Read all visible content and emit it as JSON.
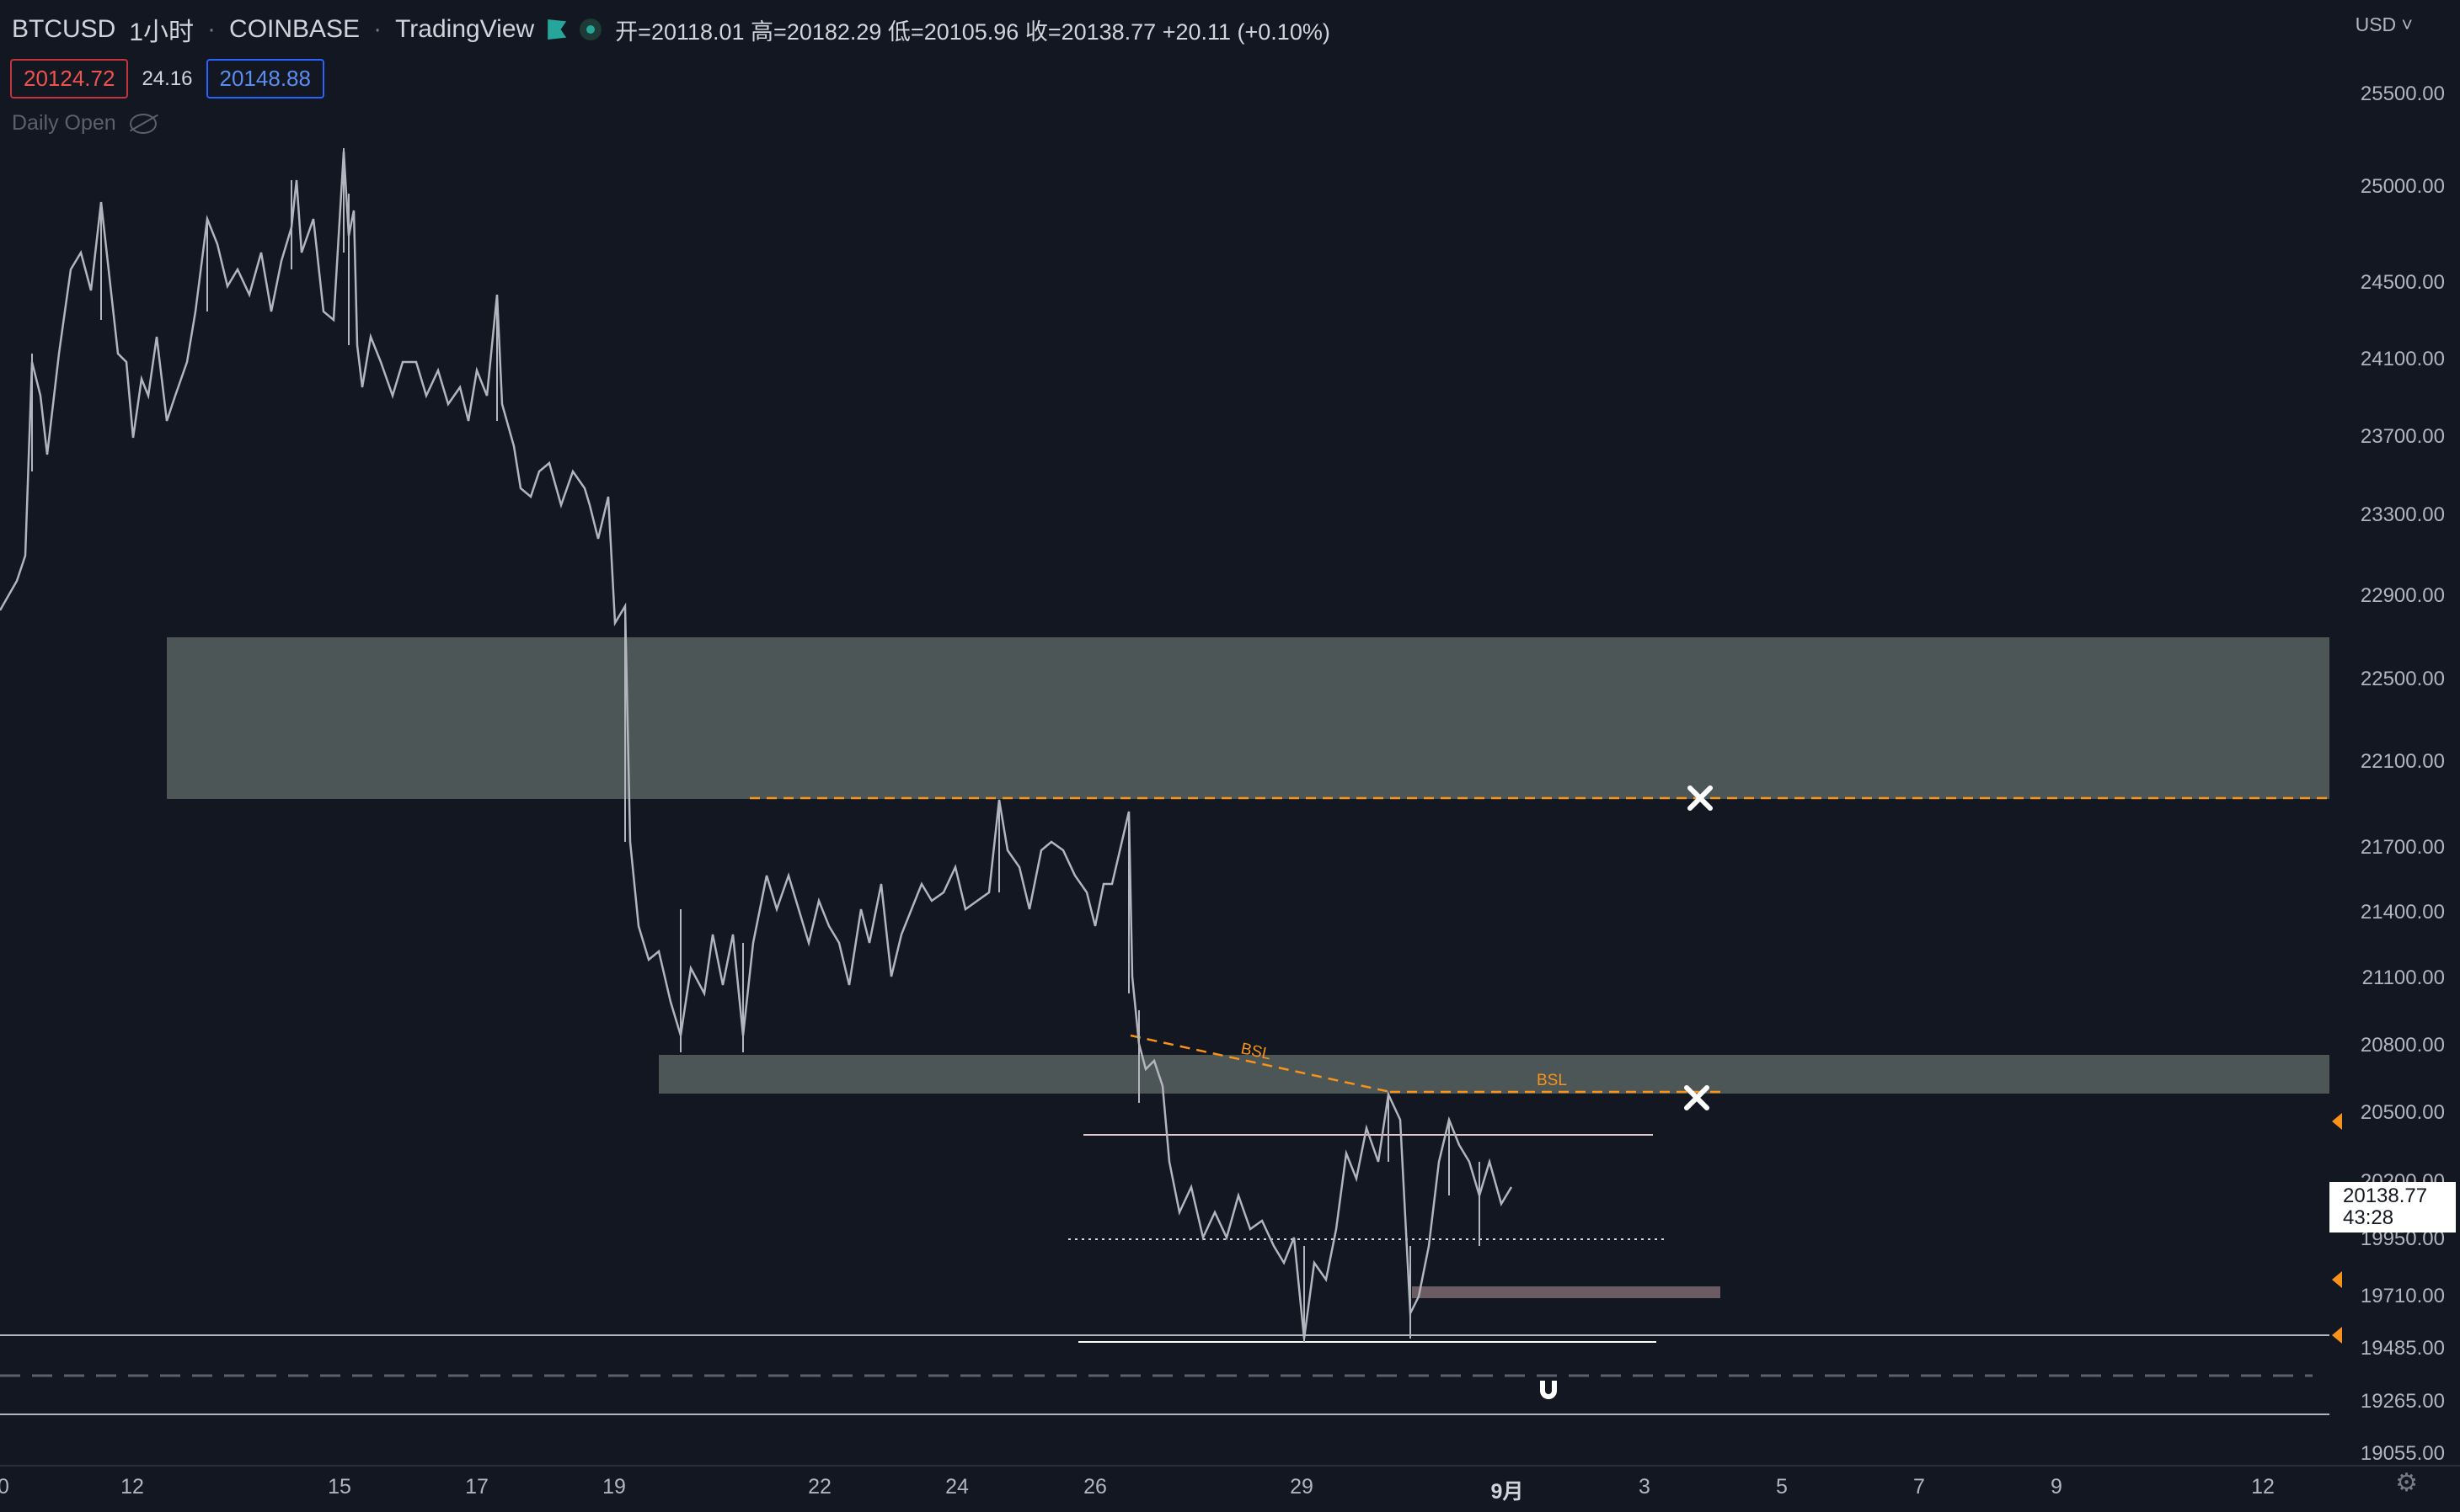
{
  "header": {
    "symbol": "BTCUSD",
    "interval": "1小时",
    "exchange": "COINBASE",
    "source": "TradingView",
    "ohlc": "开=20118.01  高=20182.29  低=20105.96  收=20138.77  +20.11 (+0.10%)",
    "sell_price": "20124.72",
    "spread": "24.16",
    "buy_price": "20148.88",
    "indicator": "Daily Open"
  },
  "currency": "USD",
  "y_axis_labels": [
    "25500.00",
    "25000.00",
    "24500.00",
    "24100.00",
    "23700.00",
    "23300.00",
    "22900.00",
    "22500.00",
    "22100.00",
    "21700.00",
    "21400.00",
    "21100.00",
    "20800.00",
    "20500.00",
    "20200.00",
    "19950.00",
    "19710.00",
    "19485.00",
    "19265.00",
    "19055.00"
  ],
  "x_axis_labels": [
    "0",
    "12",
    "15",
    "17",
    "19",
    "22",
    "24",
    "26",
    "29",
    "9月",
    "3",
    "5",
    "7",
    "9",
    "12"
  ],
  "last_price": {
    "price": "20138.77",
    "countdown": "43:28"
  },
  "annotations": {
    "bsl_1": "BSL",
    "bsl_2": "BSL"
  },
  "colors": {
    "background": "#131722",
    "zone": "#4d5656",
    "dashed": "#f7931a",
    "candle": "#b2b5be"
  },
  "chart_data": {
    "type": "candlestick",
    "symbol": "BTCUSD",
    "interval": "1小时",
    "last_close": 20138.77,
    "zones": [
      {
        "from": 22080,
        "to": 22720
      },
      {
        "from": 20580,
        "to": 20750
      }
    ],
    "levels": [
      {
        "price": 22090,
        "style": "dashed",
        "label": ""
      },
      {
        "price": 20590,
        "style": "dashed",
        "label": "BSL"
      },
      {
        "price": 20420,
        "style": "solid"
      },
      {
        "price": 19950,
        "style": "dotted"
      },
      {
        "price": 19540,
        "style": "solid"
      }
    ]
  }
}
